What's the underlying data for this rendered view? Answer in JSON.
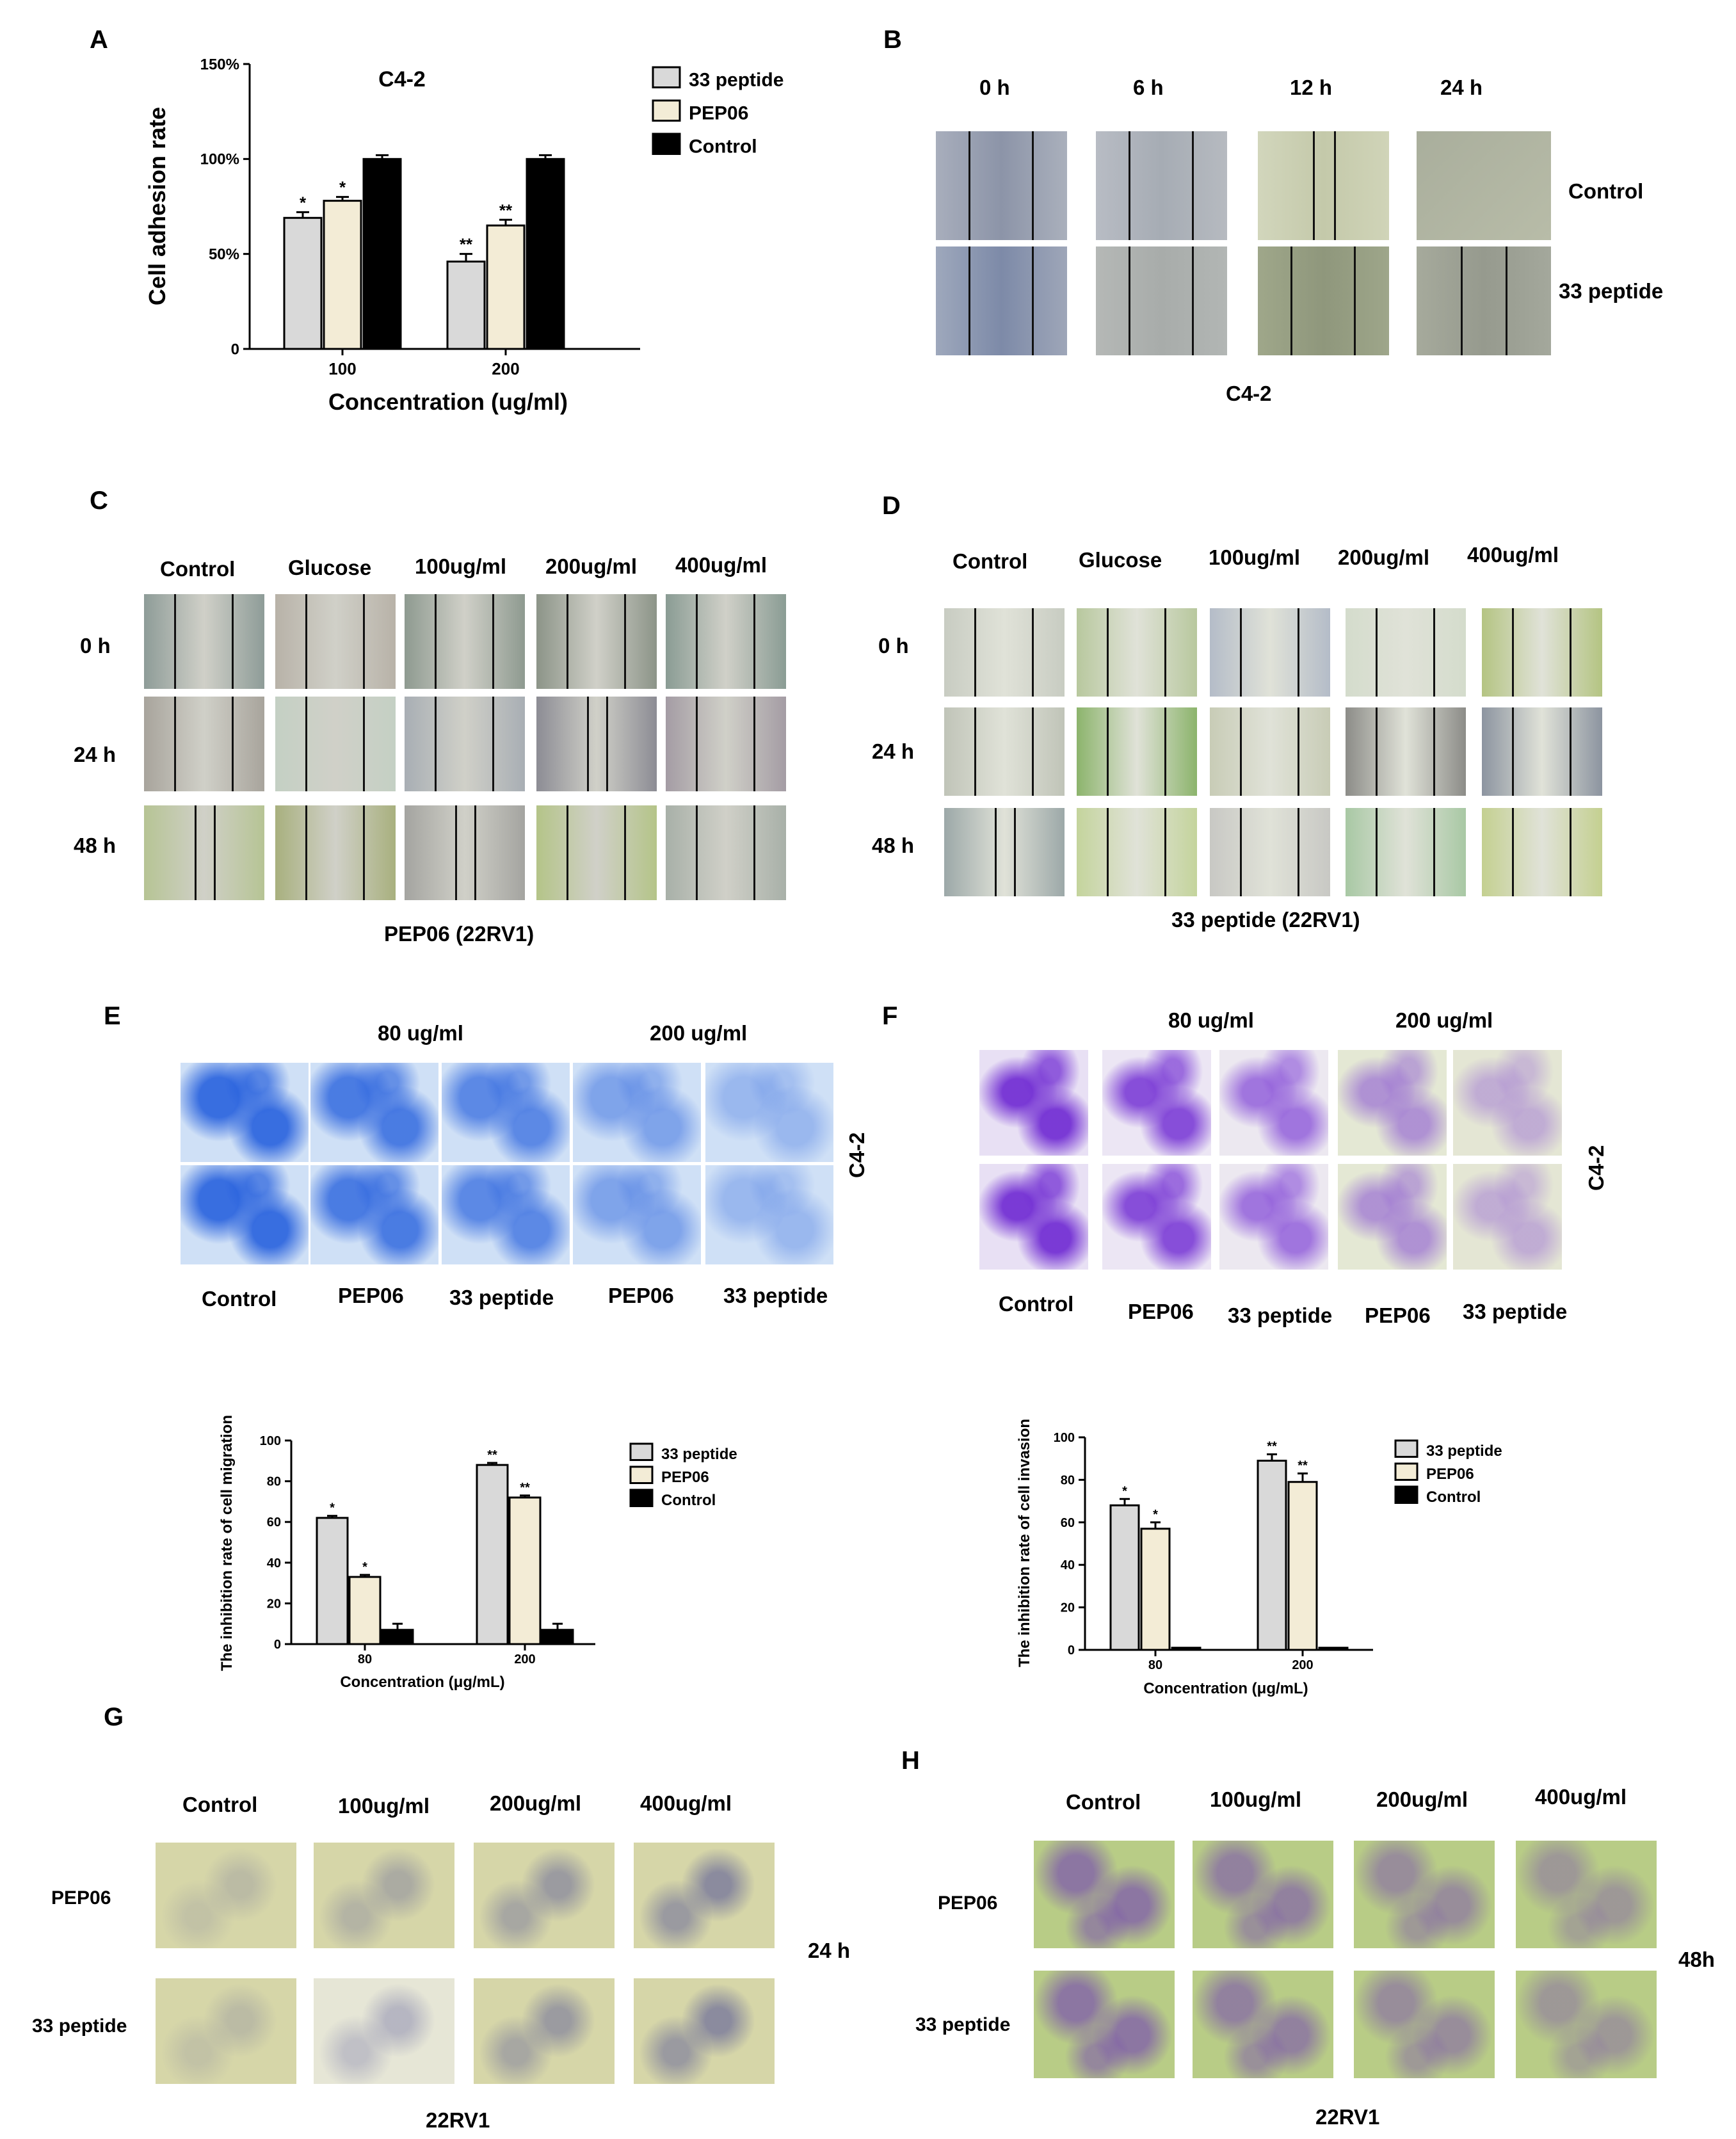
{
  "panel_letters": {
    "A": "A",
    "B": "B",
    "C": "C",
    "D": "D",
    "E": "E",
    "F": "F",
    "G": "G",
    "H": "H"
  },
  "chart_data": [
    {
      "id": "A",
      "type": "bar",
      "title": "C4-2",
      "xlabel": "Concentration (ug/ml)",
      "ylabel": "Cell adhesion rate",
      "categories": [
        "100",
        "200"
      ],
      "ylim": [
        0,
        150
      ],
      "yticks": [
        0,
        50,
        100,
        150
      ],
      "ytick_labels": [
        "0",
        "50%",
        "100%",
        "150%"
      ],
      "series": [
        {
          "name": "33 peptide",
          "values": [
            69,
            46
          ],
          "errors": [
            3,
            4
          ],
          "color": "#d9d9d9",
          "stars": [
            "*",
            "**"
          ]
        },
        {
          "name": "PEP06",
          "values": [
            78,
            65
          ],
          "errors": [
            2,
            3
          ],
          "color": "#f3ecd6",
          "stars": [
            "*",
            "**"
          ]
        },
        {
          "name": "Control",
          "values": [
            100,
            100
          ],
          "errors": [
            2,
            2
          ],
          "color": "#000000",
          "stars": [
            "",
            ""
          ]
        }
      ],
      "legend": "top-right"
    },
    {
      "id": "E",
      "type": "bar",
      "title": "",
      "xlabel": "Concentration (μg/mL)",
      "ylabel": "The inhibition rate of cell migration",
      "categories": [
        "80",
        "200"
      ],
      "ylim": [
        0,
        100
      ],
      "yticks": [
        0,
        20,
        40,
        60,
        80,
        100
      ],
      "ytick_labels": [
        "0",
        "20",
        "40",
        "60",
        "80",
        "100"
      ],
      "series": [
        {
          "name": "33 peptide",
          "values": [
            62,
            88
          ],
          "errors": [
            1,
            1
          ],
          "color": "#d9d9d9",
          "stars": [
            "*",
            "**"
          ]
        },
        {
          "name": "PEP06",
          "values": [
            33,
            72
          ],
          "errors": [
            1,
            1
          ],
          "color": "#f3ecd6",
          "stars": [
            "*",
            "**"
          ]
        },
        {
          "name": "Control",
          "values": [
            7,
            7
          ],
          "errors": [
            3,
            3
          ],
          "color": "#000000",
          "stars": [
            "",
            ""
          ]
        }
      ],
      "legend": "top-right"
    },
    {
      "id": "F",
      "type": "bar",
      "title": "",
      "xlabel": "Concentration (μg/mL)",
      "ylabel": "The inhibition rate of cell invasion",
      "categories": [
        "80",
        "200"
      ],
      "ylim": [
        0,
        100
      ],
      "yticks": [
        0,
        20,
        40,
        60,
        80,
        100
      ],
      "ytick_labels": [
        "0",
        "20",
        "40",
        "60",
        "80",
        "100"
      ],
      "series": [
        {
          "name": "33 peptide",
          "values": [
            68,
            89
          ],
          "errors": [
            3,
            3
          ],
          "color": "#d9d9d9",
          "stars": [
            "*",
            "**"
          ]
        },
        {
          "name": "PEP06",
          "values": [
            57,
            79
          ],
          "errors": [
            3,
            4
          ],
          "color": "#f3ecd6",
          "stars": [
            "*",
            "**"
          ]
        },
        {
          "name": "Control",
          "values": [
            1,
            1
          ],
          "errors": [
            0,
            0
          ],
          "color": "#000000",
          "stars": [
            "",
            ""
          ]
        }
      ],
      "legend": "top-right"
    }
  ],
  "panelB": {
    "times": [
      "0 h",
      "6 h",
      "12 h",
      "24 h"
    ],
    "rows": [
      "Control",
      "33 peptide"
    ],
    "caption": "C4-2"
  },
  "panelC": {
    "columns": [
      "Control",
      "Glucose",
      "100ug/ml",
      "200ug/ml",
      "400ug/ml"
    ],
    "rows": [
      "0 h",
      "24 h",
      "48 h"
    ],
    "caption": "PEP06 (22RV1)"
  },
  "panelD": {
    "columns": [
      "Control",
      "Glucose",
      "100ug/ml",
      "200ug/ml",
      "400ug/ml"
    ],
    "rows": [
      "0 h",
      "24 h",
      "48 h"
    ],
    "caption": "33 peptide (22RV1)"
  },
  "panelE": {
    "concentrations": [
      "80 ug/ml",
      "200 ug/ml"
    ],
    "columns": [
      "Control",
      "PEP06",
      "33 peptide",
      "PEP06",
      "33 peptide"
    ],
    "side_label": "C4-2"
  },
  "panelF": {
    "concentrations": [
      "80 ug/ml",
      "200 ug/ml"
    ],
    "columns": [
      "Control",
      "PEP06",
      "33 peptide",
      "PEP06",
      "33 peptide"
    ],
    "side_label": "C4-2"
  },
  "panelG": {
    "columns": [
      "Control",
      "100ug/ml",
      "200ug/ml",
      "400ug/ml"
    ],
    "rows": [
      "PEP06",
      "33 peptide"
    ],
    "time": "24 h",
    "caption": "22RV1"
  },
  "panelH": {
    "columns": [
      "Control",
      "100ug/ml",
      "200ug/ml",
      "400ug/ml"
    ],
    "rows": [
      "PEP06",
      "33 peptide"
    ],
    "time": "48h",
    "caption": "22RV1"
  },
  "colors": {
    "crystal_violet_blue": "#3f7fd6",
    "crystal_violet_purple": "#7b3fd0",
    "phase_gray": "#9aa6a8",
    "phase_green": "#c9d8a0",
    "stain_yellow": "#d8d8a0"
  }
}
